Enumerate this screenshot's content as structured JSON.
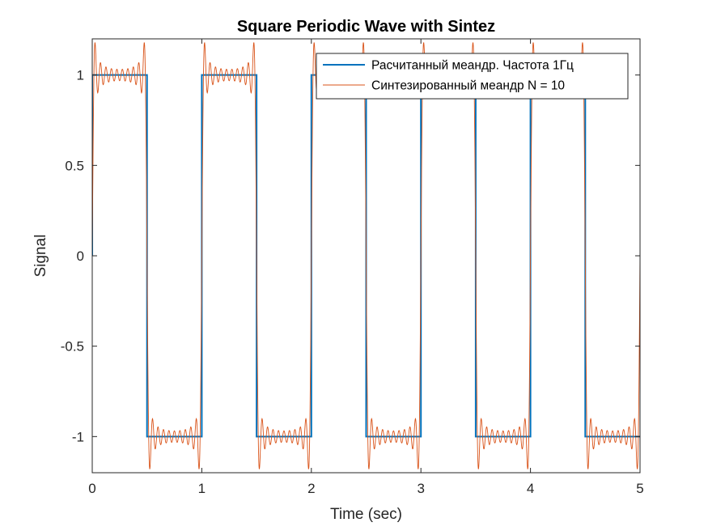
{
  "chart_data": {
    "type": "line",
    "title": "Square Periodic Wave with Sintez",
    "xlabel": "Time (sec)",
    "ylabel": "Signal",
    "xlim": [
      0,
      5
    ],
    "ylim": [
      -1.2,
      1.2
    ],
    "xticks": [
      0,
      1,
      2,
      3,
      4,
      5
    ],
    "xtick_labels": [
      "0",
      "1",
      "2",
      "3",
      "4",
      "5"
    ],
    "yticks": [
      -1,
      -0.5,
      0,
      0.5,
      1
    ],
    "ytick_labels": [
      "-1",
      "-0.5",
      "0",
      "0.5",
      "1"
    ],
    "grid": false,
    "legend_position": "top-right",
    "series": [
      {
        "name": "Расчитанный меандр. Частота 1Гц",
        "kind": "square",
        "frequency_hz": 1,
        "amplitude": 1,
        "color": "#0072BD",
        "x_start": 0.0,
        "x_end": 5.0
      },
      {
        "name": "Синтезированный меандр N = 10",
        "kind": "fourier_synthesis",
        "harmonics_n": 10,
        "frequency_hz": 1,
        "color": "#D95319"
      }
    ]
  }
}
